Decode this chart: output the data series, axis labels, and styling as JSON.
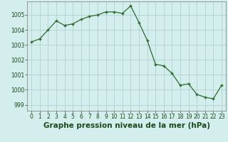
{
  "x": [
    0,
    1,
    2,
    3,
    4,
    5,
    6,
    7,
    8,
    9,
    10,
    11,
    12,
    13,
    14,
    15,
    16,
    17,
    18,
    19,
    20,
    21,
    22,
    23
  ],
  "y": [
    1003.2,
    1003.4,
    1004.0,
    1004.6,
    1004.3,
    1004.4,
    1004.7,
    1004.9,
    1005.0,
    1005.2,
    1005.2,
    1005.1,
    1005.6,
    1004.5,
    1003.3,
    1001.7,
    1001.6,
    1001.1,
    1000.3,
    1000.4,
    999.7,
    999.5,
    999.4,
    1000.3
  ],
  "line_color": "#2d6a2d",
  "marker_color": "#2d6a2d",
  "bg_color": "#d4eeee",
  "grid_color": "#aacccc",
  "xlabel": "Graphe pression niveau de la mer (hPa)",
  "xlabel_fontsize": 7.5,
  "ylim": [
    998.6,
    1005.9
  ],
  "yticks": [
    999,
    1000,
    1001,
    1002,
    1003,
    1004,
    1005
  ],
  "xticks": [
    0,
    1,
    2,
    3,
    4,
    5,
    6,
    7,
    8,
    9,
    10,
    11,
    12,
    13,
    14,
    15,
    16,
    17,
    18,
    19,
    20,
    21,
    22,
    23
  ],
  "tick_fontsize": 5.5,
  "label_color": "#1a4a1a"
}
